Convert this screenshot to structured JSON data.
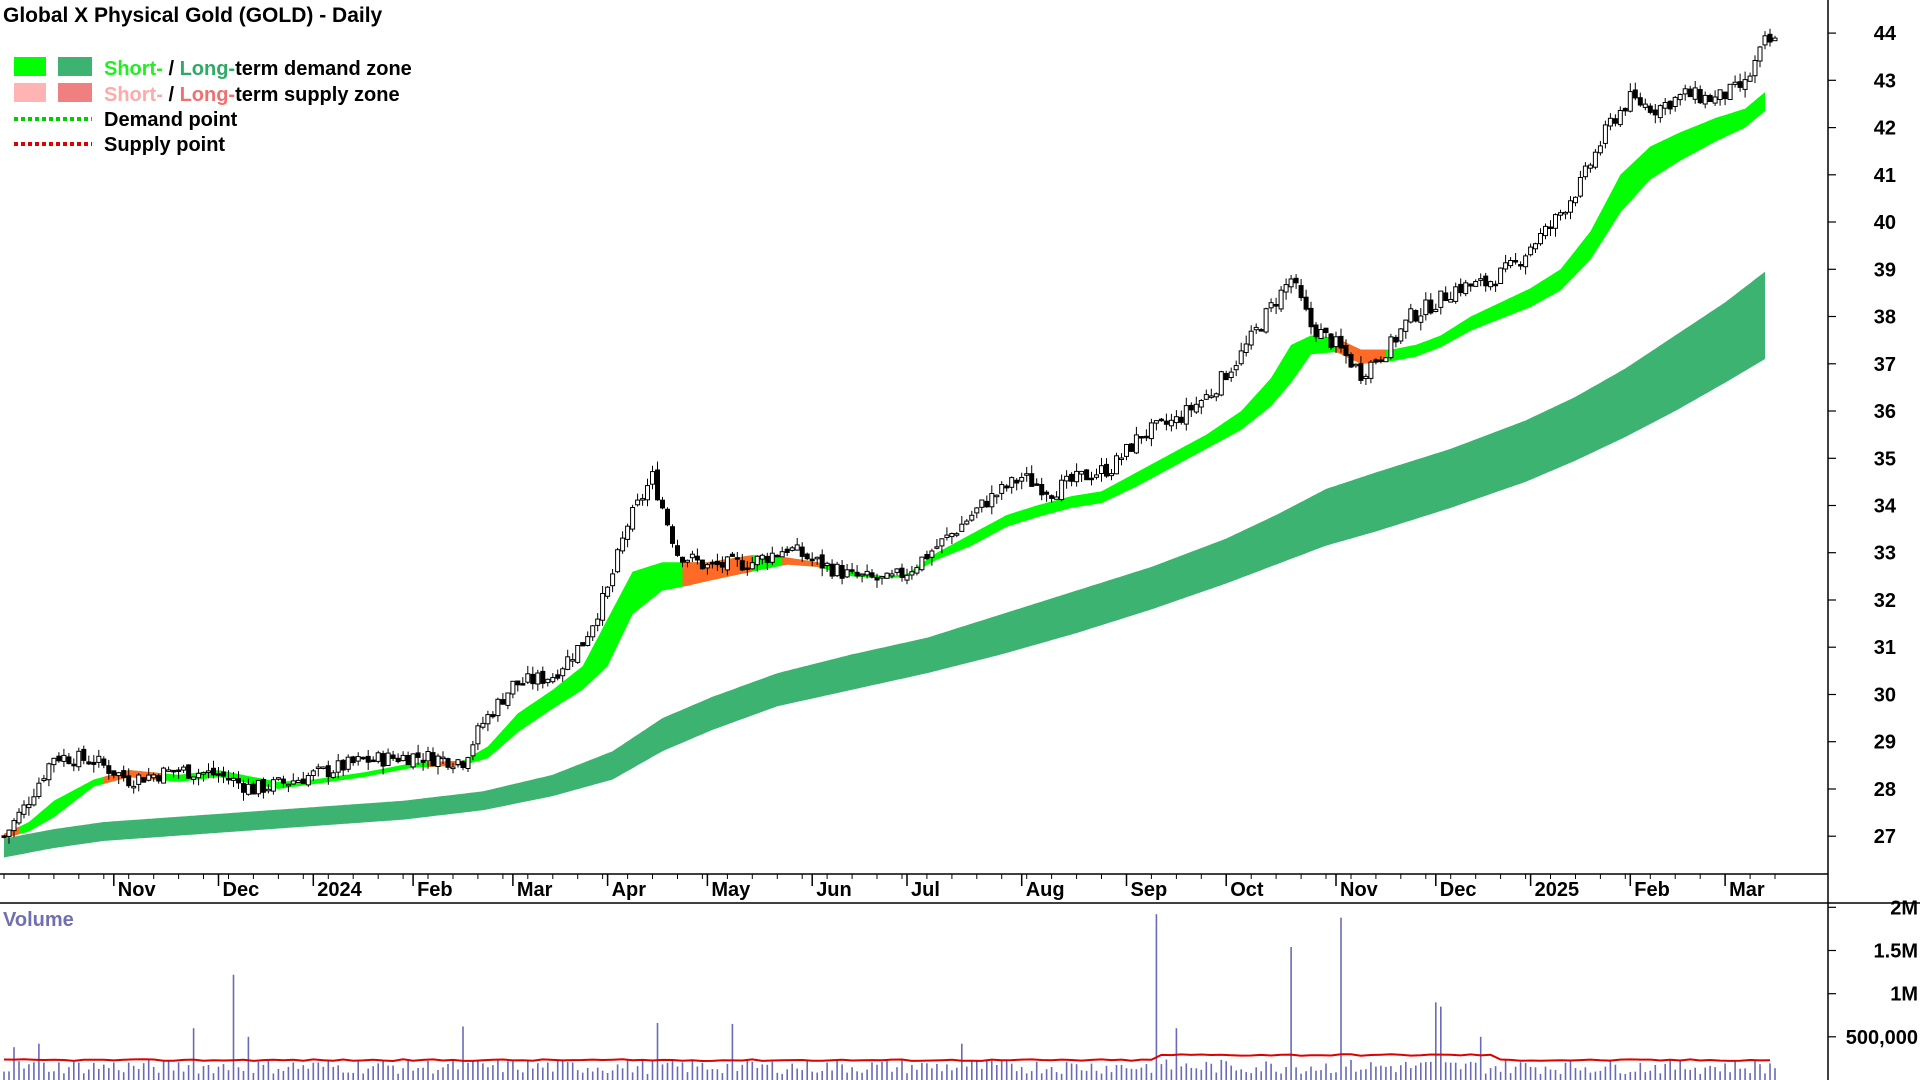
{
  "colors": {
    "short_demand": "#00ff00",
    "long_demand": "#3cb371",
    "short_supply": "#ffb3b3",
    "long_supply": "#f08080",
    "supply_fill": "#ff6a26",
    "demand_point": "#00cc00",
    "supply_point": "#dd0000",
    "candle": "#000000",
    "volume_bar": "#6a6ab8",
    "volume_avg": "#dd0000",
    "short_text": "#22ee22",
    "long_text": "#2eaa66",
    "short_supply_text": "#ffaaaa",
    "long_supply_text": "#f07070",
    "volume_title": "#7070b0"
  },
  "chart_data": {
    "type": "candlestick",
    "title": "Global X Physical Gold (GOLD) - Daily",
    "legend": [
      {
        "short": "Short-",
        "sep": " / ",
        "long": "Long-",
        "rest": "term demand zone"
      },
      {
        "short": "Short-",
        "sep": " / ",
        "long": "Long-",
        "rest": "term supply zone"
      },
      {
        "label": "Demand point"
      },
      {
        "label": "Supply point"
      }
    ],
    "y_ticks": [
      27,
      28,
      29,
      30,
      31,
      32,
      33,
      34,
      35,
      36,
      37,
      38,
      39,
      40,
      41,
      42,
      43,
      44
    ],
    "ylim": [
      26.2,
      44.7
    ],
    "x_labels": [
      "Nov",
      "Dec",
      "2024",
      "Feb",
      "Mar",
      "Apr",
      "May",
      "Jun",
      "Jul",
      "Aug",
      "Sep",
      "Oct",
      "Nov",
      "Dec",
      "2025",
      "Feb",
      "Mar"
    ],
    "x_label_days": [
      22,
      43,
      62,
      82,
      102,
      121,
      141,
      162,
      181,
      204,
      225,
      245,
      267,
      287,
      306,
      326,
      345
    ],
    "total_days": 355,
    "price_path_days": [
      0,
      4,
      10,
      18,
      25,
      35,
      43,
      50,
      55,
      62,
      72,
      82,
      92,
      96,
      102,
      110,
      116,
      121,
      125,
      130,
      135,
      141,
      150,
      157,
      163,
      170,
      177,
      181,
      190,
      197,
      204,
      210,
      216,
      222,
      228,
      235,
      242,
      248,
      254,
      258,
      262,
      267,
      272,
      278,
      282,
      287,
      291,
      297,
      303,
      306,
      310,
      316,
      322,
      326,
      331,
      337,
      343,
      349,
      353
    ],
    "price_path_values": [
      27.0,
      27.6,
      28.7,
      28.6,
      28.2,
      28.4,
      28.3,
      28.0,
      28.1,
      28.3,
      28.6,
      28.7,
      28.6,
      29.4,
      30.2,
      30.4,
      31.1,
      32.2,
      33.6,
      34.6,
      33.0,
      32.7,
      32.8,
      33.1,
      32.8,
      32.5,
      32.4,
      32.6,
      33.4,
      34.1,
      34.6,
      34.3,
      34.6,
      34.8,
      35.5,
      35.8,
      36.4,
      37.2,
      38.2,
      38.8,
      37.8,
      37.4,
      36.8,
      37.4,
      38.0,
      38.3,
      38.6,
      38.7,
      39.1,
      39.5,
      39.9,
      40.8,
      42.1,
      42.6,
      42.4,
      42.7,
      42.6,
      42.9,
      43.8
    ],
    "short_zone_days": [
      0,
      5,
      10,
      18,
      25,
      35,
      43,
      55,
      62,
      72,
      82,
      92,
      97,
      103,
      110,
      116,
      121,
      126,
      132,
      137,
      141,
      150,
      157,
      163,
      170,
      177,
      181,
      187,
      194,
      201,
      207,
      214,
      220,
      227,
      234,
      241,
      248,
      254,
      258,
      262,
      267,
      272,
      278,
      283,
      288,
      294,
      300,
      306,
      312,
      318,
      324,
      330,
      336,
      343,
      349,
      353
    ],
    "short_zone_top": [
      27.05,
      27.3,
      27.75,
      28.2,
      28.4,
      28.3,
      28.4,
      28.15,
      28.2,
      28.35,
      28.55,
      28.6,
      28.9,
      29.6,
      30.1,
      30.6,
      31.6,
      32.6,
      32.8,
      32.8,
      32.8,
      32.95,
      32.9,
      32.8,
      32.6,
      32.5,
      32.55,
      33.0,
      33.4,
      33.8,
      34.0,
      34.2,
      34.3,
      34.7,
      35.1,
      35.5,
      36.0,
      36.7,
      37.4,
      37.6,
      37.55,
      37.3,
      37.3,
      37.4,
      37.6,
      38.0,
      38.3,
      38.6,
      39.0,
      39.8,
      41.0,
      41.6,
      41.9,
      42.2,
      42.4,
      42.75
    ],
    "short_zone_bottom": [
      26.95,
      27.1,
      27.4,
      28.05,
      28.25,
      28.15,
      28.25,
      28.0,
      28.1,
      28.25,
      28.45,
      28.5,
      28.65,
      29.2,
      29.7,
      30.1,
      30.6,
      31.7,
      32.2,
      32.3,
      32.4,
      32.6,
      32.75,
      32.7,
      32.5,
      32.45,
      32.5,
      32.85,
      33.15,
      33.55,
      33.75,
      33.95,
      34.05,
      34.4,
      34.8,
      35.2,
      35.6,
      36.1,
      36.6,
      37.2,
      37.25,
      37.0,
      37.05,
      37.15,
      37.35,
      37.7,
      37.95,
      38.2,
      38.55,
      39.2,
      40.2,
      40.9,
      41.3,
      41.7,
      42.0,
      42.35
    ],
    "supply_segments": [
      [
        0,
        3
      ],
      [
        20,
        32
      ],
      [
        85,
        92
      ],
      [
        136,
        150
      ],
      [
        156,
        164
      ],
      [
        267,
        277
      ]
    ],
    "long_zone_days": [
      0,
      10,
      20,
      40,
      60,
      80,
      96,
      110,
      122,
      132,
      142,
      155,
      170,
      185,
      200,
      215,
      230,
      245,
      255,
      265,
      275,
      290,
      305,
      315,
      325,
      335,
      345,
      353
    ],
    "long_zone_top": [
      26.95,
      27.15,
      27.3,
      27.45,
      27.6,
      27.75,
      27.95,
      28.3,
      28.8,
      29.5,
      29.95,
      30.45,
      30.85,
      31.2,
      31.7,
      32.2,
      32.7,
      33.3,
      33.8,
      34.35,
      34.7,
      35.2,
      35.8,
      36.3,
      36.9,
      37.6,
      38.3,
      38.95
    ],
    "long_zone_bottom": [
      26.55,
      26.75,
      26.9,
      27.05,
      27.2,
      27.35,
      27.55,
      27.85,
      28.2,
      28.8,
      29.25,
      29.75,
      30.1,
      30.45,
      30.85,
      31.3,
      31.8,
      32.35,
      32.75,
      33.15,
      33.45,
      33.95,
      34.5,
      34.95,
      35.45,
      36.0,
      36.6,
      37.1
    ],
    "volume": {
      "title": "Volume",
      "y_ticks": [
        "2M",
        "1.5M",
        "1M",
        "500,000"
      ],
      "y_tick_values": [
        2000000,
        1500000,
        1000000,
        500000
      ],
      "ylim": [
        0,
        2050000
      ],
      "average": 230000,
      "spike_days": [
        2,
        7,
        38,
        46,
        49,
        92,
        131,
        146,
        192,
        231,
        235,
        258,
        268,
        287,
        288,
        296
      ],
      "spike_values": [
        380000,
        420000,
        600000,
        1220000,
        500000,
        620000,
        660000,
        650000,
        420000,
        1920000,
        600000,
        1540000,
        1880000,
        900000,
        850000,
        500000
      ]
    }
  }
}
